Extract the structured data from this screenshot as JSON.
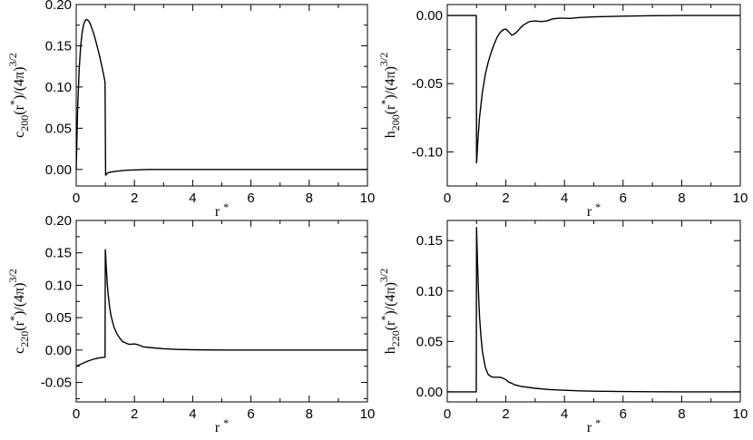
{
  "chart_data": [
    {
      "type": "line",
      "ylabel": {
        "base": "c",
        "sub": "200",
        "mid1": "(r",
        "sup1": "*",
        "mid2": ")/(4π)",
        "sup2": "3/2"
      },
      "xlabel": {
        "base": "r",
        "sup": "*"
      },
      "xlim": [
        0,
        10
      ],
      "ylim": [
        -0.02,
        0.2
      ],
      "xticks": [
        "0",
        "2",
        "4",
        "6",
        "8",
        "10"
      ],
      "xtick_values": [
        0,
        2,
        4,
        6,
        8,
        10
      ],
      "yticks": [
        "0.00",
        "0.05",
        "0.10",
        "0.15",
        "0.20"
      ],
      "ytick_values": [
        0,
        0.05,
        0.1,
        0.15,
        0.2
      ],
      "series": [
        {
          "x": [
            0,
            0.05,
            0.1,
            0.15,
            0.2,
            0.25,
            0.3,
            0.35,
            0.4,
            0.45,
            0.5,
            0.6,
            0.7,
            0.8,
            0.9,
            0.98,
            0.99,
            1.01,
            1.05,
            1.1,
            1.2,
            1.4,
            1.7,
            2.0,
            2.5,
            3,
            4,
            5,
            6,
            7,
            8,
            9,
            10
          ],
          "y": [
            0.0,
            0.075,
            0.12,
            0.148,
            0.165,
            0.175,
            0.18,
            0.182,
            0.181,
            0.179,
            0.175,
            0.165,
            0.152,
            0.138,
            0.122,
            0.108,
            0.105,
            -0.007,
            -0.005,
            -0.004,
            -0.003,
            -0.002,
            -0.001,
            -0.0005,
            0,
            0,
            0,
            0,
            0,
            0,
            0,
            0,
            0
          ]
        }
      ]
    },
    {
      "type": "line",
      "ylabel": {
        "base": "h",
        "sub": "200",
        "mid1": "(r",
        "sup1": "*",
        "mid2": ")/(4π)",
        "sup2": "3/2"
      },
      "xlabel": {
        "base": "r",
        "sup": "*"
      },
      "xlim": [
        0,
        10
      ],
      "ylim": [
        -0.125,
        0.008
      ],
      "xticks": [
        "0",
        "2",
        "4",
        "6",
        "8",
        "10"
      ],
      "xtick_values": [
        0,
        2,
        4,
        6,
        8,
        10
      ],
      "yticks": [
        "-0.10",
        "-0.05",
        "0.00"
      ],
      "ytick_values": [
        -0.1,
        -0.05,
        0
      ],
      "series": [
        {
          "x": [
            0,
            0.5,
            0.99,
            1.0,
            1.05,
            1.1,
            1.2,
            1.3,
            1.4,
            1.5,
            1.6,
            1.7,
            1.8,
            1.9,
            2.0,
            2.1,
            2.2,
            2.3,
            2.4,
            2.5,
            2.6,
            2.8,
            3.0,
            3.2,
            3.4,
            3.6,
            3.8,
            4.0,
            4.2,
            4.5,
            5,
            5.5,
            6,
            7,
            8,
            9,
            10
          ],
          "y": [
            0,
            0,
            0,
            -0.108,
            -0.09,
            -0.075,
            -0.056,
            -0.043,
            -0.034,
            -0.027,
            -0.021,
            -0.016,
            -0.0125,
            -0.0105,
            -0.01,
            -0.012,
            -0.0145,
            -0.0135,
            -0.0115,
            -0.009,
            -0.007,
            -0.0045,
            -0.004,
            -0.0045,
            -0.004,
            -0.0025,
            -0.002,
            -0.002,
            -0.0022,
            -0.0015,
            -0.001,
            -0.0008,
            -0.0005,
            -0.0002,
            0,
            0,
            0
          ]
        }
      ]
    },
    {
      "type": "line",
      "ylabel": {
        "base": "c",
        "sub": "220",
        "mid1": "(r",
        "sup1": "*",
        "mid2": ")/(4π)",
        "sup2": "3/2"
      },
      "xlabel": {
        "base": "r",
        "sup": "*"
      },
      "xlim": [
        0,
        10
      ],
      "ylim": [
        -0.08,
        0.2
      ],
      "xticks": [
        "0",
        "2",
        "4",
        "6",
        "8",
        "10"
      ],
      "xtick_values": [
        0,
        2,
        4,
        6,
        8,
        10
      ],
      "yticks": [
        "-0.05",
        "0.00",
        "0.05",
        "0.10",
        "0.15",
        "0.20"
      ],
      "ytick_values": [
        -0.05,
        0,
        0.05,
        0.1,
        0.15,
        0.2
      ],
      "series": [
        {
          "x": [
            0,
            0.2,
            0.4,
            0.6,
            0.8,
            0.99,
            1.0,
            1.03,
            1.07,
            1.1,
            1.15,
            1.2,
            1.3,
            1.4,
            1.5,
            1.6,
            1.7,
            1.8,
            1.9,
            2.0,
            2.1,
            2.2,
            2.3,
            2.5,
            3.0,
            3.5,
            4.0,
            5,
            6,
            7,
            8,
            9,
            10
          ],
          "y": [
            -0.025,
            -0.021,
            -0.017,
            -0.014,
            -0.012,
            -0.011,
            0.155,
            0.13,
            0.1,
            0.085,
            0.065,
            0.052,
            0.035,
            0.025,
            0.018,
            0.013,
            0.011,
            0.009,
            0.009,
            0.0095,
            0.0085,
            0.007,
            0.005,
            0.004,
            0.002,
            0.001,
            0.0005,
            0,
            0,
            0,
            0,
            0,
            0
          ]
        }
      ]
    },
    {
      "type": "line",
      "ylabel": {
        "base": "h",
        "sub": "220",
        "mid1": "(r",
        "sup1": "*",
        "mid2": ")/(4π)",
        "sup2": "3/2"
      },
      "xlabel": {
        "base": "r",
        "sup": "*"
      },
      "xlim": [
        0,
        10
      ],
      "ylim": [
        -0.01,
        0.17
      ],
      "xticks": [
        "0",
        "2",
        "4",
        "6",
        "8",
        "10"
      ],
      "xtick_values": [
        0,
        2,
        4,
        6,
        8,
        10
      ],
      "yticks": [
        "0.00",
        "0.05",
        "0.10",
        "0.15"
      ],
      "ytick_values": [
        0,
        0.05,
        0.1,
        0.15
      ],
      "series": [
        {
          "x": [
            0,
            0.5,
            0.99,
            1.0,
            1.03,
            1.07,
            1.1,
            1.15,
            1.2,
            1.3,
            1.4,
            1.5,
            1.6,
            1.7,
            1.8,
            1.9,
            2.0,
            2.1,
            2.2,
            2.3,
            2.5,
            3.0,
            3.5,
            4.0,
            4.5,
            5,
            6,
            7,
            8,
            9,
            10
          ],
          "y": [
            0,
            0,
            0,
            0.163,
            0.13,
            0.095,
            0.075,
            0.055,
            0.04,
            0.024,
            0.017,
            0.015,
            0.0145,
            0.0145,
            0.0145,
            0.0135,
            0.012,
            0.0095,
            0.0085,
            0.007,
            0.0055,
            0.0035,
            0.0022,
            0.0015,
            0.001,
            0.0006,
            0.0003,
            0.0001,
            0,
            0,
            0
          ]
        }
      ]
    }
  ]
}
